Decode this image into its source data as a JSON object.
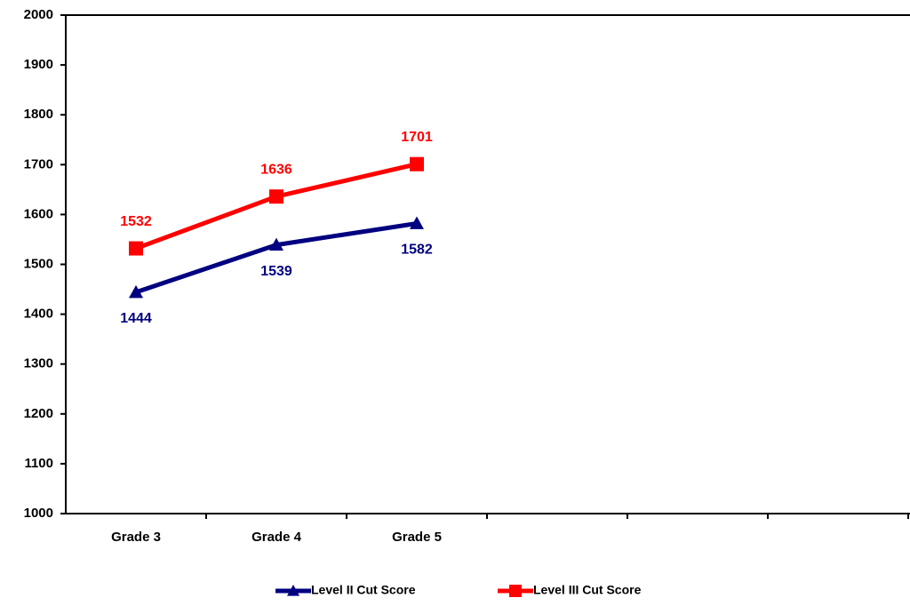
{
  "chart_data": {
    "type": "line",
    "categories": [
      "Grade 3",
      "Grade 4",
      "Grade 5",
      null,
      null,
      null
    ],
    "series": [
      {
        "name": "Level II Cut Score",
        "color": "#000080",
        "marker": "triangle",
        "values": [
          1444,
          1539,
          1582,
          null,
          null,
          null
        ]
      },
      {
        "name": "Level III Cut Score",
        "color": "#ff0000",
        "marker": "square",
        "values": [
          1532,
          1636,
          1701,
          null,
          null,
          null
        ]
      }
    ],
    "ylim": [
      1000,
      2000
    ],
    "yticks": [
      1000,
      1100,
      1200,
      1300,
      1400,
      1500,
      1600,
      1700,
      1800,
      1900,
      2000
    ],
    "grid": false,
    "legend": "bottom"
  }
}
